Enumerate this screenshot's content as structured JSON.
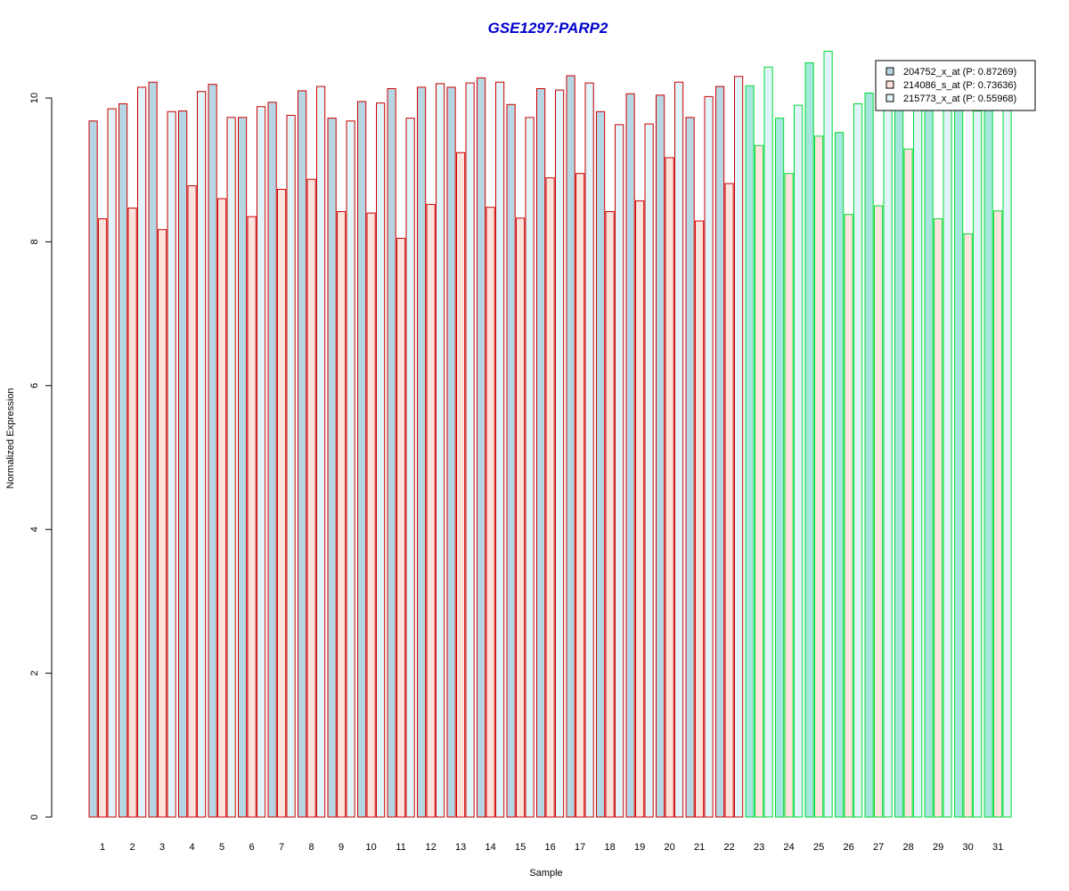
{
  "chart_data": {
    "type": "bar",
    "title": "GSE1297:PARP2",
    "xlabel": "Sample",
    "ylabel": "Normalized Expression",
    "ylim": [
      0,
      10.6
    ],
    "yticks": [
      "0",
      "2",
      "4",
      "6",
      "8",
      "10"
    ],
    "categories": [
      "1",
      "2",
      "3",
      "4",
      "5",
      "6",
      "7",
      "8",
      "9",
      "10",
      "11",
      "12",
      "13",
      "14",
      "15",
      "16",
      "17",
      "18",
      "19",
      "20",
      "21",
      "22",
      "23",
      "24",
      "25",
      "26",
      "27",
      "28",
      "29",
      "30",
      "31"
    ],
    "series": [
      {
        "name": "204752_x_at (P: 0.87269)",
        "fill": "#b7d6e3",
        "values": [
          9.68,
          9.92,
          10.22,
          9.82,
          10.19,
          9.73,
          9.94,
          10.1,
          9.72,
          9.95,
          10.13,
          10.15,
          10.15,
          10.28,
          9.91,
          10.13,
          10.31,
          9.81,
          10.06,
          10.04,
          9.73,
          10.16,
          10.17,
          9.72,
          10.49,
          9.52,
          10.07,
          10.07,
          10.07,
          10.07,
          10.07
        ]
      },
      {
        "name": "214086_s_at (P: 0.73636)",
        "fill": "#fee2dc",
        "values": [
          8.32,
          8.47,
          8.17,
          8.78,
          8.6,
          8.35,
          8.73,
          8.87,
          8.42,
          8.4,
          8.05,
          8.52,
          9.24,
          8.48,
          8.33,
          8.89,
          8.95,
          8.42,
          8.57,
          9.17,
          8.29,
          8.81,
          9.34,
          8.95,
          9.47,
          8.38,
          8.5,
          9.29,
          8.32,
          8.11,
          8.43
        ]
      },
      {
        "name": "215773_x_at (P: 0.55968)",
        "fill": "#e0f4f9",
        "values": [
          9.85,
          10.15,
          9.81,
          10.09,
          9.73,
          9.88,
          9.76,
          10.16,
          9.68,
          9.93,
          9.72,
          10.2,
          10.21,
          10.22,
          9.73,
          10.11,
          10.21,
          9.63,
          9.64,
          10.22,
          10.02,
          10.3,
          10.43,
          9.9,
          10.65,
          9.92,
          10.04,
          10.04,
          10.04,
          9.82,
          10.04
        ]
      }
    ],
    "group_colors": {
      "first_group_border": "#cc0000",
      "second_group_border": "#00dd33",
      "second_group_fill_204752": "#a5e6dd"
    },
    "group_split_index": 22,
    "legend_position": "top-right",
    "grid": false
  }
}
